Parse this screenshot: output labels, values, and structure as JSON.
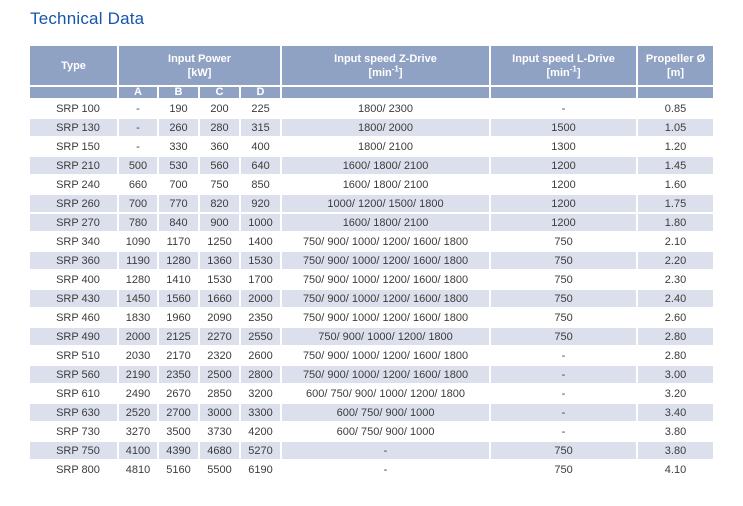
{
  "page": {
    "title": "Technical Data"
  },
  "colors": {
    "title": "#1656AD",
    "header_bg": "#8FA2C4",
    "header_text": "#FFFFFF",
    "row_shaded_bg": "#DCE0EC",
    "row_bg": "#FFFFFF",
    "body_text": "#3C3C3C"
  },
  "table": {
    "headers": {
      "type": "Type",
      "input_power": "Input Power",
      "input_power_unit": "[kW]",
      "power_sub_columns": [
        "A",
        "B",
        "C",
        "D"
      ],
      "z_drive": "Input speed Z-Drive",
      "l_drive": "Input speed L-Drive",
      "speed_unit_pre": "[min",
      "speed_unit_sup": "-1",
      "speed_unit_post": "]",
      "propeller": "Propeller Ø",
      "propeller_unit": "[m]"
    },
    "rows": [
      {
        "type": "SRP 100",
        "a": "-",
        "b": "190",
        "c": "200",
        "d": "225",
        "z": "1800/ 2300",
        "l": "-",
        "prop": "0.85",
        "shaded": false
      },
      {
        "type": "SRP 130",
        "a": "-",
        "b": "260",
        "c": "280",
        "d": "315",
        "z": "1800/ 2000",
        "l": "1500",
        "prop": "1.05",
        "shaded": true
      },
      {
        "type": "SRP 150",
        "a": "-",
        "b": "330",
        "c": "360",
        "d": "400",
        "z": "1800/ 2100",
        "l": "1300",
        "prop": "1.20",
        "shaded": false
      },
      {
        "type": "SRP 210",
        "a": "500",
        "b": "530",
        "c": "560",
        "d": "640",
        "z": "1600/ 1800/ 2100",
        "l": "1200",
        "prop": "1.45",
        "shaded": true
      },
      {
        "type": "SRP 240",
        "a": "660",
        "b": "700",
        "c": "750",
        "d": "850",
        "z": "1600/ 1800/ 2100",
        "l": "1200",
        "prop": "1.60",
        "shaded": false
      },
      {
        "type": "SRP 260",
        "a": "700",
        "b": "770",
        "c": "820",
        "d": "920",
        "z": "1000/ 1200/ 1500/ 1800",
        "l": "1200",
        "prop": "1.75",
        "shaded": true
      },
      {
        "type": "SRP 270",
        "a": "780",
        "b": "840",
        "c": "900",
        "d": "1000",
        "z": "1600/ 1800/ 2100",
        "l": "1200",
        "prop": "1.80",
        "shaded": true
      },
      {
        "type": "SRP 340",
        "a": "1090",
        "b": "1170",
        "c": "1250",
        "d": "1400",
        "z": "750/ 900/ 1000/ 1200/ 1600/ 1800",
        "l": "750",
        "prop": "2.10",
        "shaded": false
      },
      {
        "type": "SRP 360",
        "a": "1190",
        "b": "1280",
        "c": "1360",
        "d": "1530",
        "z": "750/ 900/ 1000/ 1200/ 1600/ 1800",
        "l": "750",
        "prop": "2.20",
        "shaded": true
      },
      {
        "type": "SRP 400",
        "a": "1280",
        "b": "1410",
        "c": "1530",
        "d": "1700",
        "z": "750/ 900/ 1000/ 1200/ 1600/ 1800",
        "l": "750",
        "prop": "2.30",
        "shaded": false
      },
      {
        "type": "SRP 430",
        "a": "1450",
        "b": "1560",
        "c": "1660",
        "d": "2000",
        "z": "750/ 900/ 1000/ 1200/ 1600/ 1800",
        "l": "750",
        "prop": "2.40",
        "shaded": true
      },
      {
        "type": "SRP 460",
        "a": "1830",
        "b": "1960",
        "c": "2090",
        "d": "2350",
        "z": "750/ 900/ 1000/ 1200/ 1600/ 1800",
        "l": "750",
        "prop": "2.60",
        "shaded": false
      },
      {
        "type": "SRP 490",
        "a": "2000",
        "b": "2125",
        "c": "2270",
        "d": "2550",
        "z": "750/ 900/ 1000/ 1200/ 1800",
        "l": "750",
        "prop": "2.80",
        "shaded": true
      },
      {
        "type": "SRP 510",
        "a": "2030",
        "b": "2170",
        "c": "2320",
        "d": "2600",
        "z": "750/ 900/ 1000/ 1200/ 1600/ 1800",
        "l": "-",
        "prop": "2.80",
        "shaded": false
      },
      {
        "type": "SRP 560",
        "a": "2190",
        "b": "2350",
        "c": "2500",
        "d": "2800",
        "z": "750/ 900/ 1000/ 1200/ 1600/ 1800",
        "l": "-",
        "prop": "3.00",
        "shaded": true
      },
      {
        "type": "SRP 610",
        "a": "2490",
        "b": "2670",
        "c": "2850",
        "d": "3200",
        "z": "600/ 750/ 900/ 1000/ 1200/ 1800",
        "l": "-",
        "prop": "3.20",
        "shaded": false
      },
      {
        "type": "SRP 630",
        "a": "2520",
        "b": "2700",
        "c": "3000",
        "d": "3300",
        "z": "600/ 750/ 900/ 1000",
        "l": "-",
        "prop": "3.40",
        "shaded": true
      },
      {
        "type": "SRP 730",
        "a": "3270",
        "b": "3500",
        "c": "3730",
        "d": "4200",
        "z": "600/ 750/ 900/ 1000",
        "l": "-",
        "prop": "3.80",
        "shaded": false
      },
      {
        "type": "SRP 750",
        "a": "4100",
        "b": "4390",
        "c": "4680",
        "d": "5270",
        "z": "-",
        "l": "750",
        "prop": "3.80",
        "shaded": true
      },
      {
        "type": "SRP 800",
        "a": "4810",
        "b": "5160",
        "c": "5500",
        "d": "6190",
        "z": "-",
        "l": "750",
        "prop": "4.10",
        "shaded": false
      }
    ]
  }
}
